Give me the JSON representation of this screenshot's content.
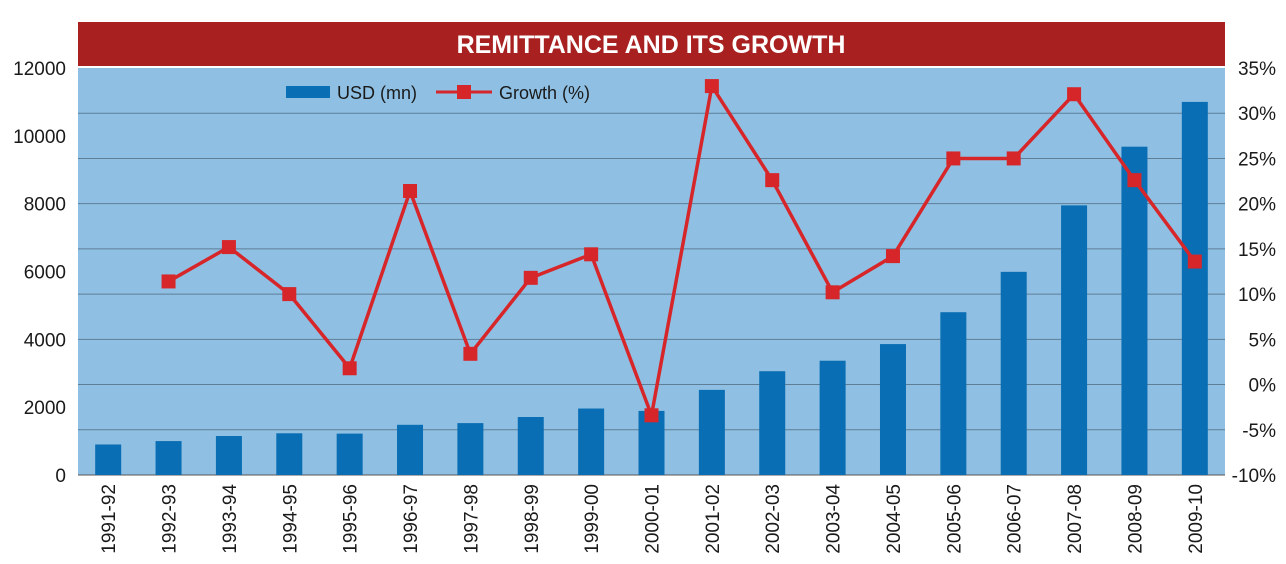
{
  "colors": {
    "title_bg": "#A8201F",
    "plot_bg": "#8FC0E3",
    "bar": "#0A6EB4",
    "line": "#D7262A",
    "gridline": "#5E7E96"
  },
  "chart_data": {
    "type": "bar",
    "title": "REMITTANCE AND ITS GROWTH",
    "categories": [
      "1991-92",
      "1992-93",
      "1993-94",
      "1994-95",
      "1995-96",
      "1996-97",
      "1997-98",
      "1998-99",
      "1999-00",
      "2000-01",
      "2001-02",
      "2002-03",
      "2003-04",
      "2004-05",
      "2005-06",
      "2006-07",
      "2007-08",
      "2008-09",
      "2009-10"
    ],
    "series": [
      {
        "name": "USD (mn)",
        "type": "bar",
        "axis": "left",
        "values": [
          900,
          1000,
          1150,
          1230,
          1220,
          1480,
          1530,
          1710,
          1960,
          1890,
          2510,
          3060,
          3370,
          3860,
          4800,
          5990,
          7950,
          9680,
          11000
        ]
      },
      {
        "name": "Growth (%)",
        "type": "line",
        "axis": "right",
        "values": [
          null,
          11.4,
          15.2,
          10.0,
          1.8,
          21.4,
          3.4,
          11.8,
          14.4,
          -3.4,
          33.0,
          22.6,
          10.2,
          14.2,
          25.0,
          25.0,
          32.1,
          22.6,
          13.6
        ]
      }
    ],
    "y_left": {
      "min": 0,
      "max": 12000,
      "ticks": [
        "0",
        "2000",
        "4000",
        "6000",
        "8000",
        "10000",
        "12000"
      ]
    },
    "y_right": {
      "min": -10,
      "max": 35,
      "ticks": [
        "-10%",
        "-5%",
        "0%",
        "5%",
        "10%",
        "15%",
        "20%",
        "25%",
        "30%",
        "35%"
      ]
    },
    "legend": {
      "placement": "top-left",
      "labels": [
        "USD (mn)",
        "Growth (%)"
      ]
    },
    "grid": true
  }
}
